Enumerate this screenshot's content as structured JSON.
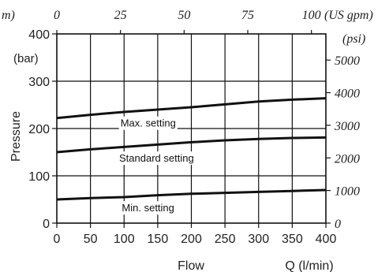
{
  "chart_data": {
    "type": "line",
    "xlabel": "Flow",
    "x_unit_label": "Q (l/min)",
    "ylabel": "Pressure",
    "y_unit_label": "(bar)",
    "x_ticks": [
      "0",
      "50",
      "100",
      "150",
      "200",
      "250",
      "300",
      "350",
      "400"
    ],
    "y_ticks": [
      "400",
      "300",
      "200",
      "100",
      "0"
    ],
    "xlim": [
      0,
      400
    ],
    "ylim": [
      0,
      400
    ],
    "grid": true,
    "top_axis": {
      "ticks": [
        "0",
        "25",
        "50",
        "75",
        "100"
      ],
      "unit_label": "(US gpm)",
      "clipped_left_label": "m)"
    },
    "right_axis": {
      "ticks": [
        "5000",
        "4000",
        "3000",
        "2000",
        "1000",
        "0"
      ],
      "unit_label": "(psi)"
    },
    "series": [
      {
        "name": "Max. setting",
        "x": [
          0,
          50,
          100,
          150,
          200,
          250,
          300,
          350,
          400
        ],
        "y": [
          222,
          229,
          235,
          240,
          245,
          251,
          257,
          261,
          264
        ]
      },
      {
        "name": "Standard setting",
        "x": [
          0,
          50,
          100,
          150,
          200,
          250,
          300,
          350,
          400
        ],
        "y": [
          150,
          156,
          161,
          166,
          171,
          175,
          178,
          180,
          181
        ]
      },
      {
        "name": "Min. setting",
        "x": [
          0,
          50,
          100,
          150,
          200,
          250,
          300,
          350,
          400
        ],
        "y": [
          50,
          53,
          55,
          59,
          62,
          64,
          66,
          68,
          70
        ]
      }
    ]
  }
}
